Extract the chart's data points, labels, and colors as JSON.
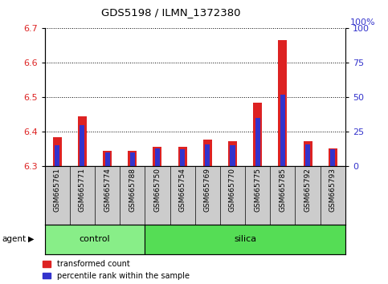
{
  "title": "GDS5198 / ILMN_1372380",
  "samples": [
    "GSM665761",
    "GSM665771",
    "GSM665774",
    "GSM665788",
    "GSM665750",
    "GSM665754",
    "GSM665769",
    "GSM665770",
    "GSM665775",
    "GSM665785",
    "GSM665792",
    "GSM665793"
  ],
  "control_count": 4,
  "silica_count": 8,
  "red_values": [
    6.385,
    6.445,
    6.345,
    6.345,
    6.357,
    6.357,
    6.378,
    6.372,
    6.485,
    6.665,
    6.372,
    6.352
  ],
  "blue_values_pct": [
    15,
    30,
    10,
    10,
    13,
    12,
    16,
    15,
    35,
    52,
    16,
    12
  ],
  "y_min": 6.3,
  "y_max": 6.7,
  "y_left_ticks": [
    6.3,
    6.4,
    6.5,
    6.6,
    6.7
  ],
  "y_right_ticks": [
    0,
    25,
    50,
    75,
    100
  ],
  "red_color": "#dd2222",
  "blue_color": "#3333cc",
  "control_color": "#88ee88",
  "silica_color": "#55dd55",
  "bg_color": "#cccccc",
  "agent_label": "agent",
  "control_label": "control",
  "silica_label": "silica",
  "legend_red": "transformed count",
  "legend_blue": "percentile rank within the sample",
  "right_axis_label": "100%"
}
